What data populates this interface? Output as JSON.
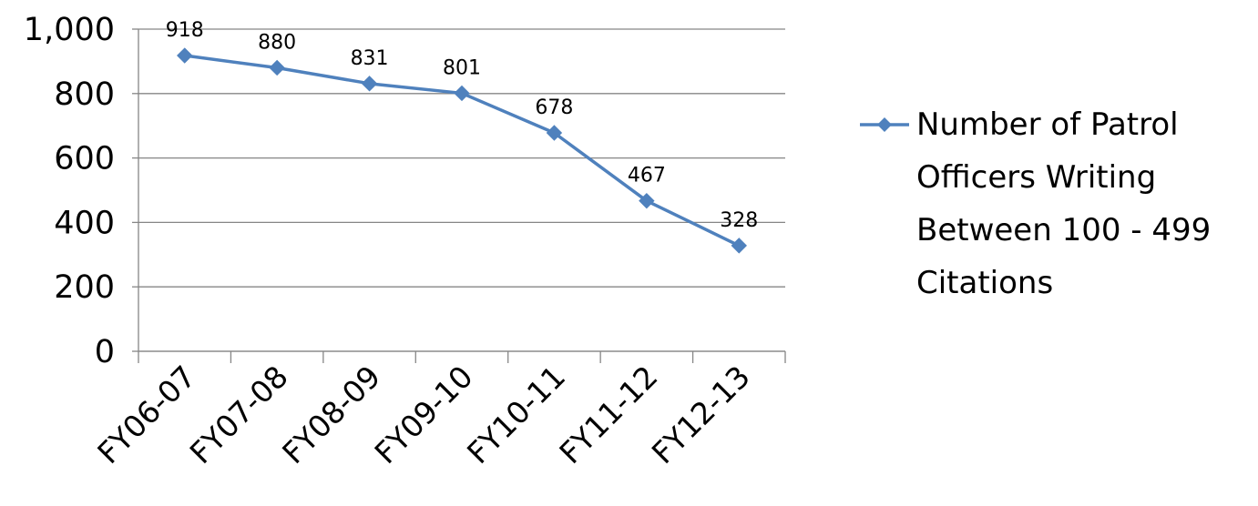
{
  "chart_data": {
    "type": "line",
    "categories": [
      "FY06-07",
      "FY07-08",
      "FY08-09",
      "FY09-10",
      "FY10-11",
      "FY11-12",
      "FY12-13"
    ],
    "series": [
      {
        "name": "Number of Patrol Officers Writing Between 100 - 499 Citations",
        "values": [
          918,
          880,
          831,
          801,
          678,
          467,
          328
        ],
        "color": "#4F81BD",
        "marker": "diamond"
      }
    ],
    "data_labels": [
      "918",
      "880",
      "831",
      "801",
      "678",
      "467",
      "328"
    ],
    "y_ticks": [
      "0",
      "200",
      "400",
      "600",
      "800",
      "1,000"
    ],
    "y_tick_values": [
      0,
      200,
      400,
      600,
      800,
      1000
    ],
    "ylim": [
      0,
      1000
    ],
    "grid": true,
    "legend_position": "right",
    "legend_lines": [
      "Number of Patrol",
      "Officers Writing",
      "Between 100 - 499",
      "Citations"
    ],
    "colors": {
      "series": "#4F81BD",
      "grid": "#868686",
      "axis": "#868686"
    }
  }
}
